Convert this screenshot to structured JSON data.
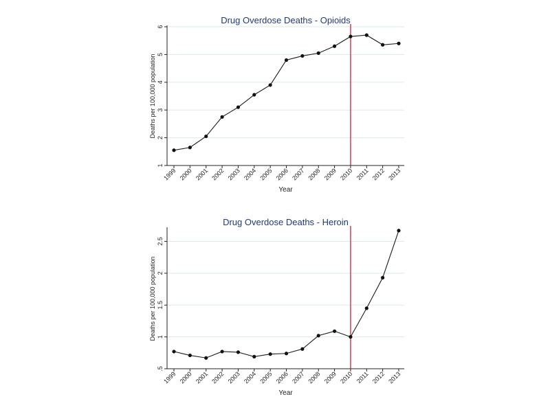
{
  "chart_data": [
    {
      "type": "line",
      "title": "Drug Overdose Deaths - Opioids",
      "xlabel": "Year",
      "ylabel": "Deaths per 100,000 population",
      "categories": [
        "1999",
        "2000",
        "2001",
        "2002",
        "2003",
        "2004",
        "2005",
        "2006",
        "2007",
        "2008",
        "2009",
        "2010",
        "2011",
        "2012",
        "2013"
      ],
      "series": [
        {
          "values": [
            1.55,
            1.65,
            2.05,
            2.75,
            3.1,
            3.55,
            3.9,
            4.8,
            4.95,
            5.05,
            5.3,
            5.65,
            5.7,
            5.35,
            5.4
          ]
        }
      ],
      "ylim": [
        1,
        6
      ],
      "yticks": [
        1,
        2,
        3,
        4,
        5,
        6
      ],
      "ytick_labels": [
        "1",
        "2",
        "3",
        "4",
        "5",
        "6"
      ],
      "vline_x": "2010",
      "grid": true,
      "colors": {
        "line": "#1a1a1a",
        "marker": "#111111",
        "vline": "#c8102e",
        "grid": "#d9ebee",
        "title": "#1f3a7a",
        "axis": "#222222"
      }
    },
    {
      "type": "line",
      "title": "Drug Overdose Deaths - Heroin",
      "xlabel": "Year",
      "ylabel": "Deaths per 100,000 population",
      "categories": [
        "1999",
        "2000",
        "2001",
        "2002",
        "2003",
        "2004",
        "2005",
        "2006",
        "2007",
        "2008",
        "2009",
        "2010",
        "2011",
        "2012",
        "2013"
      ],
      "series": [
        {
          "values": [
            0.77,
            0.71,
            0.67,
            0.77,
            0.76,
            0.69,
            0.73,
            0.74,
            0.81,
            1.02,
            1.09,
            1.0,
            1.45,
            1.93,
            2.67
          ]
        }
      ],
      "ylim": [
        0.5,
        2.7
      ],
      "yticks": [
        0.5,
        1,
        1.5,
        2,
        2.5
      ],
      "ytick_labels": [
        ".5",
        "1",
        "1.5",
        "2",
        "2.5"
      ],
      "vline_x": "2010",
      "grid": true,
      "colors": {
        "line": "#1a1a1a",
        "marker": "#111111",
        "vline": "#c8102e",
        "grid": "#d9ebee",
        "title": "#1f3a7a",
        "axis": "#222222"
      }
    }
  ]
}
